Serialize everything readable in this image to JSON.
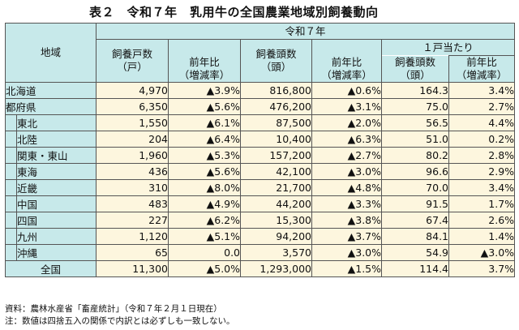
{
  "title": "表２　令和７年　乳用牛の全国農業地域別飼養動向",
  "header": {
    "region": "地域",
    "year": "令和７年",
    "households": "飼養戸数\n（戸）",
    "households_yoy": "前年比\n（増減率）",
    "heads": "飼養頭数\n（頭）",
    "heads_yoy": "前年比\n（増減率）",
    "per_household_group": "１戸当たり",
    "per_household": "飼養頭数\n（頭）",
    "per_household_yoy": "前年比\n（増減率）"
  },
  "rows": [
    {
      "region": "北海道",
      "households": "4,970",
      "households_yoy": "▲3.9%",
      "heads": "816,800",
      "heads_yoy": "▲0.6%",
      "per_household": "164.3",
      "per_household_yoy": "3.4%"
    },
    {
      "region": "都府県",
      "households": "6,350",
      "households_yoy": "▲5.6%",
      "heads": "476,200",
      "heads_yoy": "▲3.1%",
      "per_household": "75.0",
      "per_household_yoy": "2.7%"
    },
    {
      "region": "東北",
      "households": "1,550",
      "households_yoy": "▲6.1%",
      "heads": "87,500",
      "heads_yoy": "▲2.0%",
      "per_household": "56.5",
      "per_household_yoy": "4.4%"
    },
    {
      "region": "北陸",
      "households": "204",
      "households_yoy": "▲6.4%",
      "heads": "10,400",
      "heads_yoy": "▲6.3%",
      "per_household": "51.0",
      "per_household_yoy": "0.2%"
    },
    {
      "region": "関東・東山",
      "households": "1,960",
      "households_yoy": "▲5.3%",
      "heads": "157,200",
      "heads_yoy": "▲2.7%",
      "per_household": "80.2",
      "per_household_yoy": "2.8%"
    },
    {
      "region": "東海",
      "households": "436",
      "households_yoy": "▲5.6%",
      "heads": "42,100",
      "heads_yoy": "▲3.0%",
      "per_household": "96.6",
      "per_household_yoy": "2.9%"
    },
    {
      "region": "近畿",
      "households": "310",
      "households_yoy": "▲8.0%",
      "heads": "21,700",
      "heads_yoy": "▲4.8%",
      "per_household": "70.0",
      "per_household_yoy": "3.4%"
    },
    {
      "region": "中国",
      "households": "483",
      "households_yoy": "▲4.9%",
      "heads": "44,200",
      "heads_yoy": "▲3.3%",
      "per_household": "91.5",
      "per_household_yoy": "1.7%"
    },
    {
      "region": "四国",
      "households": "227",
      "households_yoy": "▲6.2%",
      "heads": "15,300",
      "heads_yoy": "▲3.8%",
      "per_household": "67.4",
      "per_household_yoy": "2.6%"
    },
    {
      "region": "九州",
      "households": "1,120",
      "households_yoy": "▲5.1%",
      "heads": "94,200",
      "heads_yoy": "▲3.7%",
      "per_household": "84.1",
      "per_household_yoy": "1.4%"
    },
    {
      "region": "沖縄",
      "households": "65",
      "households_yoy": "0.0",
      "heads": "3,570",
      "heads_yoy": "▲3.0%",
      "per_household": "54.9",
      "per_household_yoy": "▲3.0%"
    }
  ],
  "total": {
    "region": "全国",
    "households": "11,300",
    "households_yoy": "▲5.0%",
    "heads": "1,293,000",
    "heads_yoy": "▲1.5%",
    "per_household": "114.4",
    "per_household_yoy": "3.7%"
  },
  "notes": {
    "source": "資料：農林水産省「畜産統計」（令和７年２月１日現在）",
    "note": "注：数値は四捨五入の関係で内訳とは必ずしも一致しない。"
  }
}
